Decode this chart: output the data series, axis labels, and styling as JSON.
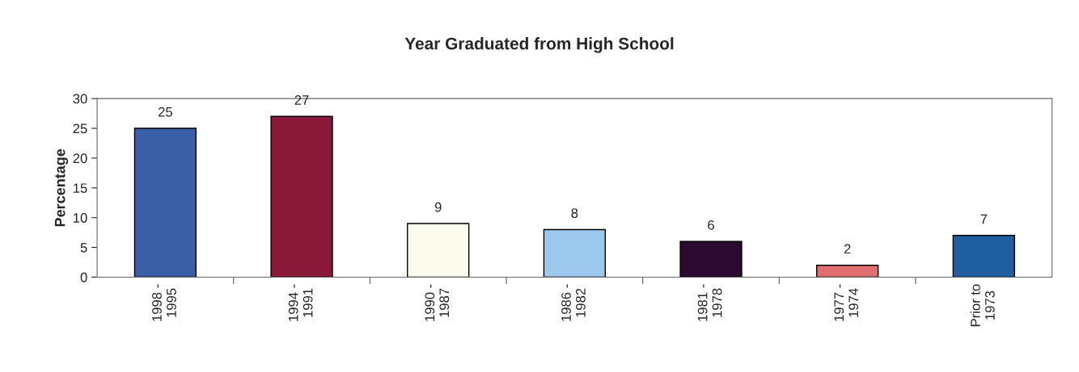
{
  "chart_data": {
    "type": "bar",
    "title": "Year Graduated from High School",
    "ylabel": "Percentage",
    "categories": [
      "1998 -\n1995",
      "1994 -\n1991",
      "1990 -\n1987",
      "1986 -\n1982",
      "1981 -\n1978",
      "1977 -\n1974",
      "Prior to\n1973"
    ],
    "values": [
      25,
      27,
      9,
      8,
      6,
      2,
      7
    ],
    "colors": [
      "#3a5fa6",
      "#8b1a3a",
      "#fbfbee",
      "#9cc8ee",
      "#2a0a30",
      "#e07070",
      "#1f5fa0"
    ],
    "ylim": [
      0,
      30
    ],
    "yticks": [
      0,
      5,
      10,
      15,
      20,
      25,
      30
    ],
    "grid": false,
    "data_labels": true
  }
}
